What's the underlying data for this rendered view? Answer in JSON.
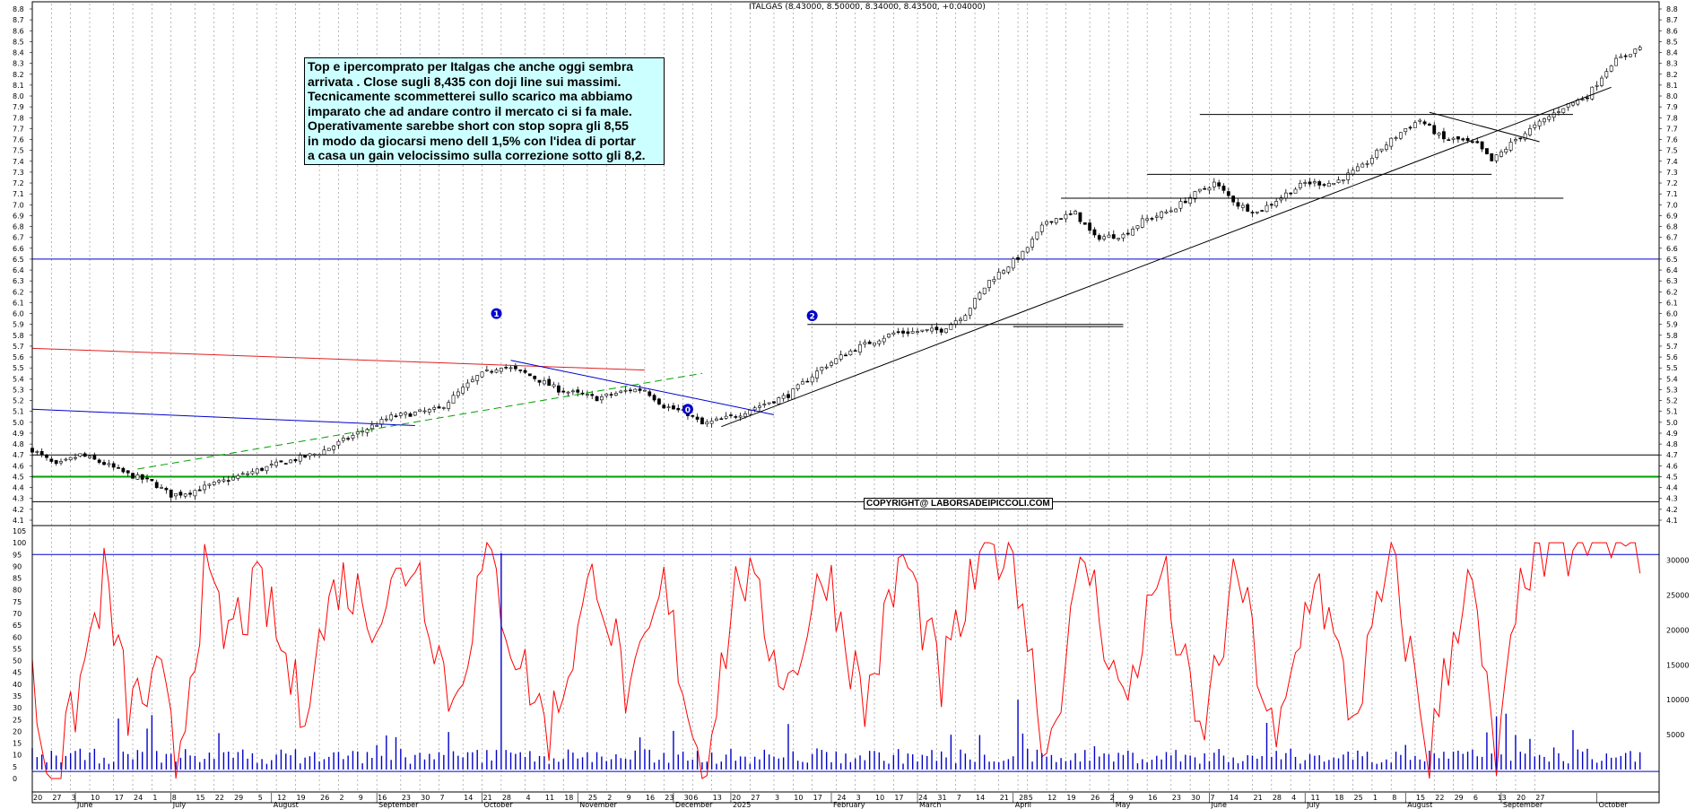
{
  "header": "ITALGAS (8.43000, 8.50000, 8.34000, 8.43500, +0.04000)",
  "note_lines": [
    "Top e ipercomprato per Italgas che anche oggi sembra",
    "arrivata . Close sugli 8,435 con doji line sui massimi.",
    "Tecnicamente scommetterei sullo scarico ma abbiamo",
    "imparato che ad andare contro il mercato ci si fa male.",
    "Operativamente sarebbe short con stop sopra gli 8,55",
    "in modo da giocarsi meno dell 1,5%  con l'idea di portar",
    "a casa un gain velocissimo sulla correzione sotto gli 8,2."
  ],
  "copyright": "COPYRIGHT@ LABORSADEIPICCOLI.COM",
  "markers": [
    {
      "label": "1",
      "date_idx": 97,
      "price": 6.0
    },
    {
      "label": "2",
      "date_idx": 163,
      "price": 5.98
    },
    {
      "label": "0",
      "date_idx": 137,
      "price": 5.12
    }
  ],
  "colors": {
    "candles": "#000000",
    "oscillator": "#ff0000",
    "volume": "#0000cc",
    "support_green": "#00a000",
    "resistance_red": "#e02020",
    "blue_lines": "#0000cc",
    "grid": "#888888"
  },
  "chart_data": [
    {
      "type": "candlestick",
      "title": "ITALGAS",
      "price_axis": {
        "min": 4.1,
        "max": 8.8,
        "step": 0.1
      },
      "price_ticks": [
        "8.8",
        "8.7",
        "8.6",
        "8.5",
        "8.4",
        "8.3",
        "8.2",
        "8.1",
        "8.0",
        "7.9",
        "7.8",
        "7.7",
        "7.6",
        "7.5",
        "7.4",
        "7.3",
        "7.2",
        "7.1",
        "7.0",
        "6.9",
        "6.8",
        "6.7",
        "6.6",
        "6.5",
        "6.4",
        "6.3",
        "6.2",
        "6.1",
        "6.0",
        "5.9",
        "5.8",
        "5.7",
        "5.6",
        "5.5",
        "5.4",
        "5.3",
        "5.2",
        "5.1",
        "5.0",
        "4.9",
        "4.8",
        "4.7",
        "4.6",
        "4.5",
        "4.4",
        "4.3",
        "4.2",
        "4.1"
      ],
      "price_path": [
        [
          0,
          4.75
        ],
        [
          5,
          4.6
        ],
        [
          10,
          4.7
        ],
        [
          15,
          4.62
        ],
        [
          20,
          4.52
        ],
        [
          25,
          4.45
        ],
        [
          29,
          4.33
        ],
        [
          33,
          4.36
        ],
        [
          40,
          4.46
        ],
        [
          50,
          4.6
        ],
        [
          60,
          4.72
        ],
        [
          68,
          4.9
        ],
        [
          75,
          5.05
        ],
        [
          85,
          5.12
        ],
        [
          93,
          5.42
        ],
        [
          98,
          5.52
        ],
        [
          103,
          5.45
        ],
        [
          110,
          5.3
        ],
        [
          118,
          5.22
        ],
        [
          125,
          5.3
        ],
        [
          128,
          5.3
        ],
        [
          132,
          5.15
        ],
        [
          137,
          5.08
        ],
        [
          140,
          4.98
        ],
        [
          147,
          5.06
        ],
        [
          150,
          5.12
        ],
        [
          158,
          5.25
        ],
        [
          165,
          5.5
        ],
        [
          172,
          5.68
        ],
        [
          180,
          5.82
        ],
        [
          190,
          5.85
        ],
        [
          195,
          6.0
        ],
        [
          200,
          6.3
        ],
        [
          207,
          6.55
        ],
        [
          212,
          6.85
        ],
        [
          218,
          6.92
        ],
        [
          222,
          6.7
        ],
        [
          228,
          6.72
        ],
        [
          232,
          6.85
        ],
        [
          238,
          6.95
        ],
        [
          243,
          7.1
        ],
        [
          247,
          7.2
        ],
        [
          252,
          7.0
        ],
        [
          256,
          6.93
        ],
        [
          262,
          7.1
        ],
        [
          266,
          7.2
        ],
        [
          272,
          7.2
        ],
        [
          278,
          7.35
        ],
        [
          282,
          7.52
        ],
        [
          287,
          7.7
        ],
        [
          290,
          7.78
        ],
        [
          295,
          7.6
        ],
        [
          298,
          7.6
        ],
        [
          302,
          7.55
        ],
        [
          305,
          7.4
        ],
        [
          310,
          7.6
        ],
        [
          315,
          7.75
        ],
        [
          320,
          7.9
        ],
        [
          325,
          8.0
        ],
        [
          330,
          8.3
        ],
        [
          336,
          8.45
        ]
      ],
      "x_ticks": [
        {
          "idx": 0,
          "label": "20"
        },
        {
          "idx": 4,
          "label": "27"
        },
        {
          "idx": 8,
          "label": "3"
        },
        {
          "idx": 12,
          "label": "10"
        },
        {
          "idx": 17,
          "label": "17"
        },
        {
          "idx": 21,
          "label": "24"
        },
        {
          "idx": 25,
          "label": "1"
        },
        {
          "idx": 29,
          "label": "8"
        },
        {
          "idx": 34,
          "label": "15"
        },
        {
          "idx": 38,
          "label": "22"
        },
        {
          "idx": 42,
          "label": "29"
        },
        {
          "idx": 47,
          "label": "5"
        },
        {
          "idx": 51,
          "label": "12"
        },
        {
          "idx": 55,
          "label": "19"
        },
        {
          "idx": 60,
          "label": "26"
        },
        {
          "idx": 64,
          "label": "2"
        },
        {
          "idx": 68,
          "label": "9"
        },
        {
          "idx": 72,
          "label": "16"
        },
        {
          "idx": 77,
          "label": "23"
        },
        {
          "idx": 81,
          "label": "30"
        },
        {
          "idx": 85,
          "label": "7"
        },
        {
          "idx": 90,
          "label": "14"
        },
        {
          "idx": 94,
          "label": "21"
        },
        {
          "idx": 98,
          "label": "28"
        },
        {
          "idx": 103,
          "label": "4"
        },
        {
          "idx": 107,
          "label": "11"
        },
        {
          "idx": 111,
          "label": "18"
        },
        {
          "idx": 116,
          "label": "25"
        },
        {
          "idx": 120,
          "label": "2"
        },
        {
          "idx": 124,
          "label": "9"
        },
        {
          "idx": 128,
          "label": "16"
        },
        {
          "idx": 132,
          "label": "23"
        },
        {
          "idx": 136,
          "label": "30"
        },
        {
          "idx": 138,
          "label": "6"
        },
        {
          "idx": 142,
          "label": "13"
        },
        {
          "idx": 146,
          "label": "20"
        },
        {
          "idx": 150,
          "label": "27"
        },
        {
          "idx": 155,
          "label": "3"
        },
        {
          "idx": 159,
          "label": "10"
        },
        {
          "idx": 163,
          "label": "17"
        },
        {
          "idx": 168,
          "label": "24"
        },
        {
          "idx": 172,
          "label": "3"
        },
        {
          "idx": 176,
          "label": "10"
        },
        {
          "idx": 180,
          "label": "17"
        },
        {
          "idx": 185,
          "label": "24"
        },
        {
          "idx": 189,
          "label": "31"
        },
        {
          "idx": 193,
          "label": "7"
        },
        {
          "idx": 197,
          "label": "14"
        },
        {
          "idx": 202,
          "label": "21"
        },
        {
          "idx": 206,
          "label": "28"
        },
        {
          "idx": 208,
          "label": "5"
        },
        {
          "idx": 212,
          "label": "12"
        },
        {
          "idx": 216,
          "label": "19"
        },
        {
          "idx": 221,
          "label": "26"
        },
        {
          "idx": 225,
          "label": "2"
        },
        {
          "idx": 229,
          "label": "9"
        },
        {
          "idx": 233,
          "label": "16"
        },
        {
          "idx": 238,
          "label": "23"
        },
        {
          "idx": 242,
          "label": "30"
        },
        {
          "idx": 246,
          "label": "7"
        },
        {
          "idx": 250,
          "label": "14"
        },
        {
          "idx": 255,
          "label": "21"
        },
        {
          "idx": 259,
          "label": "28"
        },
        {
          "idx": 263,
          "label": "4"
        },
        {
          "idx": 267,
          "label": "11"
        },
        {
          "idx": 272,
          "label": "18"
        },
        {
          "idx": 276,
          "label": "25"
        },
        {
          "idx": 280,
          "label": "1"
        },
        {
          "idx": 284,
          "label": "8"
        },
        {
          "idx": 289,
          "label": "15"
        },
        {
          "idx": 293,
          "label": "22"
        },
        {
          "idx": 297,
          "label": "29"
        },
        {
          "idx": 301,
          "label": "6"
        },
        {
          "idx": 306,
          "label": "13"
        },
        {
          "idx": 310,
          "label": "20"
        },
        {
          "idx": 314,
          "label": "27"
        }
      ],
      "month_labels": [
        {
          "idx": 9,
          "label": "June"
        },
        {
          "idx": 29,
          "label": "July"
        },
        {
          "idx": 50,
          "label": "August"
        },
        {
          "idx": 72,
          "label": "September"
        },
        {
          "idx": 94,
          "label": "October"
        },
        {
          "idx": 114,
          "label": "November"
        },
        {
          "idx": 134,
          "label": "December"
        },
        {
          "idx": 146,
          "label": "2025"
        },
        {
          "idx": 167,
          "label": "February"
        },
        {
          "idx": 185,
          "label": "March"
        },
        {
          "idx": 205,
          "label": "April"
        },
        {
          "idx": 226,
          "label": "May"
        },
        {
          "idx": 246,
          "label": "June"
        },
        {
          "idx": 266,
          "label": "July"
        },
        {
          "idx": 287,
          "label": "August"
        },
        {
          "idx": 307,
          "label": "September"
        },
        {
          "idx": 327,
          "label": "October"
        }
      ],
      "horizontal_lines": [
        {
          "price": 6.5,
          "color": "blue"
        },
        {
          "price": 4.7,
          "color": "black"
        },
        {
          "price": 4.5,
          "color": "green"
        },
        {
          "price": 4.27,
          "color": "black"
        }
      ],
      "trend_lines": [
        {
          "from": [
            0,
            5.68
          ],
          "to": [
            128,
            5.48
          ],
          "color": "red"
        },
        {
          "from": [
            0,
            5.12
          ],
          "to": [
            80,
            4.97
          ],
          "color": "blue"
        },
        {
          "from": [
            22,
            4.57
          ],
          "to": [
            140,
            5.45
          ],
          "color": "green",
          "dashed": true
        },
        {
          "from": [
            100,
            5.57
          ],
          "to": [
            155,
            5.07
          ],
          "color": "blue"
        },
        {
          "from": [
            144,
            4.96
          ],
          "to": [
            330,
            8.08
          ],
          "color": "black"
        },
        {
          "from": [
            162,
            5.9
          ],
          "to": [
            228,
            5.9
          ],
          "color": "black"
        },
        {
          "from": [
            205,
            5.88
          ],
          "to": [
            228,
            5.88
          ],
          "color": "black"
        },
        {
          "from": [
            215,
            7.06
          ],
          "to": [
            320,
            7.06
          ],
          "color": "black"
        },
        {
          "from": [
            233,
            7.28
          ],
          "to": [
            305,
            7.28
          ],
          "color": "black"
        },
        {
          "from": [
            244,
            7.83
          ],
          "to": [
            322,
            7.83
          ],
          "color": "black"
        },
        {
          "from": [
            292,
            7.85
          ],
          "to": [
            315,
            7.58
          ],
          "color": "black"
        }
      ]
    },
    {
      "type": "line",
      "series": [
        {
          "values_range": [
            0,
            100
          ]
        }
      ],
      "oscillator_axis": {
        "min": 0,
        "max": 105
      },
      "oscillator_ticks": [
        "105",
        "100",
        "95",
        "90",
        "85",
        "80",
        "75",
        "70",
        "65",
        "60",
        "55",
        "50",
        "45",
        "40",
        "35",
        "30",
        "25",
        "20",
        "15",
        "10",
        "5",
        "0"
      ],
      "volume_ticks": [
        "30000",
        "25000",
        "20000",
        "15000",
        "10000",
        "5000"
      ],
      "oscillator_levels": [
        95,
        3
      ],
      "oscillator_keypoints": [
        [
          0,
          42
        ],
        [
          3,
          5
        ],
        [
          6,
          5
        ],
        [
          10,
          40
        ],
        [
          15,
          85
        ],
        [
          20,
          30
        ],
        [
          27,
          40
        ],
        [
          30,
          5
        ],
        [
          36,
          85
        ],
        [
          40,
          60
        ],
        [
          48,
          80
        ],
        [
          56,
          30
        ],
        [
          64,
          85
        ],
        [
          72,
          70
        ],
        [
          80,
          95
        ],
        [
          88,
          30
        ],
        [
          95,
          97
        ],
        [
          100,
          60
        ],
        [
          108,
          20
        ],
        [
          118,
          90
        ],
        [
          125,
          30
        ],
        [
          132,
          80
        ],
        [
          140,
          3
        ],
        [
          148,
          90
        ],
        [
          158,
          40
        ],
        [
          166,
          90
        ],
        [
          174,
          30
        ],
        [
          182,
          95
        ],
        [
          190,
          40
        ],
        [
          198,
          92
        ],
        [
          205,
          100
        ],
        [
          212,
          10
        ],
        [
          220,
          95
        ],
        [
          228,
          30
        ],
        [
          236,
          90
        ],
        [
          244,
          15
        ],
        [
          252,
          88
        ],
        [
          260,
          10
        ],
        [
          268,
          90
        ],
        [
          276,
          25
        ],
        [
          284,
          92
        ],
        [
          292,
          10
        ],
        [
          300,
          90
        ],
        [
          306,
          5
        ],
        [
          312,
          92
        ],
        [
          318,
          95
        ],
        [
          326,
          100
        ]
      ]
    }
  ]
}
